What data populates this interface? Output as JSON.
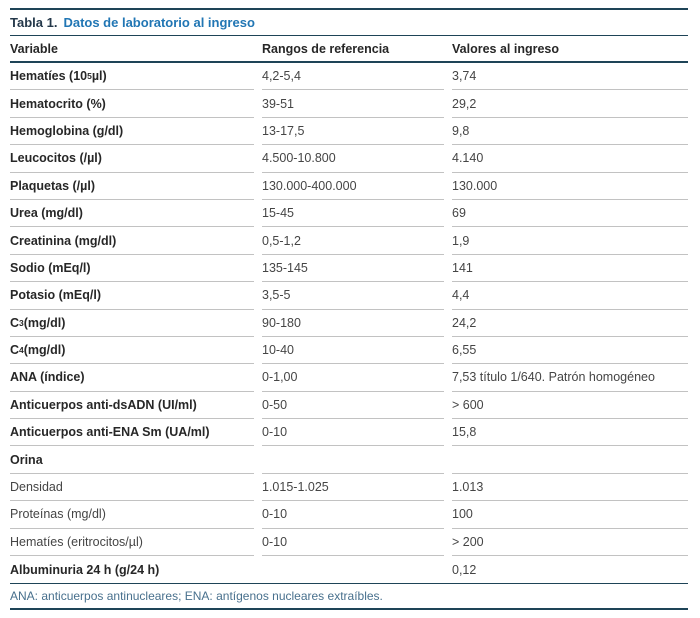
{
  "title": {
    "label": "Tabla 1.",
    "caption": "Datos de laboratorio al ingreso"
  },
  "colors": {
    "accent_blue": "#2176b4",
    "rule_navy": "#1e4457",
    "footnote_blue": "#48708d",
    "separator_gray": "#c2c2c2"
  },
  "table": {
    "columns": [
      "Variable",
      "Rangos de referencia",
      "Valores al ingreso"
    ],
    "rows": [
      {
        "variable_pre": "Hematíes (10",
        "variable_sup": "5",
        "variable_post": " µl)",
        "range": "4,2-5,4",
        "value": "3,74"
      },
      {
        "variable": "Hematocrito (%)",
        "range": "39-51",
        "value": "29,2"
      },
      {
        "variable": "Hemoglobina (g/dl)",
        "range": "13-17,5",
        "value": "9,8"
      },
      {
        "variable": "Leucocitos (/µl)",
        "range": "4.500-10.800",
        "value": "4.140"
      },
      {
        "variable": "Plaquetas (/µl)",
        "range": "130.000-400.000",
        "value": "130.000"
      },
      {
        "variable": "Urea (mg/dl)",
        "range": "15-45",
        "value": "69"
      },
      {
        "variable": "Creatinina (mg/dl)",
        "range": "0,5-1,2",
        "value": "1,9"
      },
      {
        "variable": "Sodio (mEq/l)",
        "range": "135-145",
        "value": "141"
      },
      {
        "variable": "Potasio (mEq/l)",
        "range": "3,5-5",
        "value": "4,4"
      },
      {
        "variable_pre": "C",
        "variable_sub": "3",
        "variable_post": " (mg/dl)",
        "range": "90-180",
        "value": "24,2"
      },
      {
        "variable_pre": "C",
        "variable_sub": "4",
        "variable_post": " (mg/dl)",
        "range": "10-40",
        "value": "6,55"
      },
      {
        "variable": "ANA (índice)",
        "range": "0-1,00",
        "value": "7,53 título 1/640. Patrón homogéneo"
      },
      {
        "variable": "Anticuerpos anti-dsADN (UI/ml)",
        "range": "0-50",
        "value": "> 600"
      },
      {
        "variable": "Anticuerpos anti-ENA Sm (UA/ml)",
        "range": "0-10",
        "value": "15,8"
      },
      {
        "variable": "Orina",
        "range": "",
        "value": ""
      },
      {
        "variable": "Densidad",
        "range": "1.015-1.025",
        "value": "1.013"
      },
      {
        "variable": "Proteínas (mg/dl)",
        "range": "0-10",
        "value": "100"
      },
      {
        "variable": "Hematíes (eritrocitos/µl)",
        "range": "0-10",
        "value": "> 200"
      },
      {
        "variable": "Albuminuria 24 h (g/24 h)",
        "range": "",
        "value": "0,12"
      }
    ]
  },
  "footnote": "ANA: anticuerpos antinucleares; ENA: antígenos nucleares extraíbles."
}
